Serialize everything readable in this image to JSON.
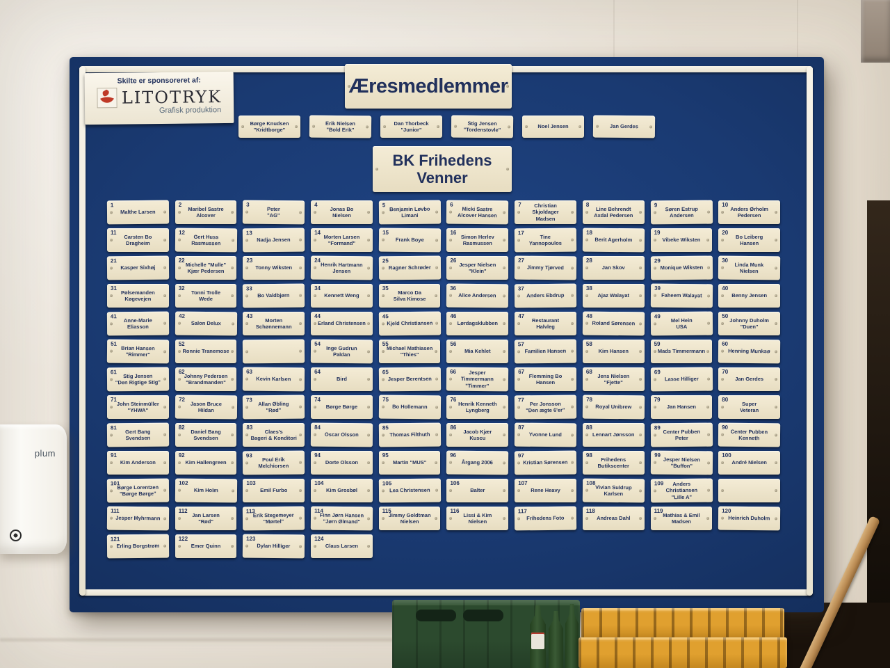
{
  "board": {
    "title": "Æresmedlemmer",
    "club": {
      "line1": "BK Frihedens",
      "line2": "Venner"
    },
    "sponsor": {
      "intro": "Skilte er sponsoreret af:",
      "brand": "LITOTRYK",
      "tagline": "Grafisk produktion"
    },
    "honorary": [
      {
        "name": "Børge Knudsen",
        "nick": "\"Kridtborge\""
      },
      {
        "name": "Erik Nielsen",
        "nick": "\"Bold Erik\""
      },
      {
        "name": "Dan Thorbeck",
        "nick": "\"Junior\""
      },
      {
        "name": "Stig Jensen",
        "nick": "\"Tordenstovle\""
      },
      {
        "name": "Noel Jensen",
        "nick": ""
      },
      {
        "name": "Jan Gerdes",
        "nick": ""
      }
    ],
    "members": [
      [
        "1",
        "Malthe Larsen"
      ],
      [
        "2",
        "Maribel Sastre\nAlcover"
      ],
      [
        "3",
        "Peter\n\"AG\""
      ],
      [
        "4",
        "Jonas Bo\nNielsen"
      ],
      [
        "5",
        "Benjamin Løvbo\nLimani"
      ],
      [
        "6",
        "Micki Sastre\nAlcover Hansen"
      ],
      [
        "7",
        "Christian Skjoldager\nMadsen"
      ],
      [
        "8",
        "Line Behrendt\nAxdal Pedersen"
      ],
      [
        "9",
        "Søren Estrup\nAndersen"
      ],
      [
        "10",
        "Anders Ørholm\nPedersen"
      ],
      [
        "11",
        "Carsten Bo\nDragheim"
      ],
      [
        "12",
        "Gert Huss\nRasmussen"
      ],
      [
        "13",
        "Nadja Jensen"
      ],
      [
        "14",
        "Morten Larsen\n\"Formand\""
      ],
      [
        "15",
        "Frank Boye"
      ],
      [
        "16",
        "Simon Herlev\nRasmussen"
      ],
      [
        "17",
        "Tine\nYannopoulos"
      ],
      [
        "18",
        "Berit Agerholm"
      ],
      [
        "19",
        "Vibeke Wiksten"
      ],
      [
        "20",
        "Bo Leiberg\nHansen"
      ],
      [
        "21",
        "Kasper Sixhøj"
      ],
      [
        "22",
        "Michelle \"Mulle\"\nKjær Pedersen"
      ],
      [
        "23",
        "Tonny Wiksten"
      ],
      [
        "24",
        "Henrik Hartmann\nJensen"
      ],
      [
        "25",
        "Ragner Schrøder"
      ],
      [
        "26",
        "Jesper Nielsen\n\"Klein\""
      ],
      [
        "27",
        "Jimmy Tjørved"
      ],
      [
        "28",
        "Jan Skov"
      ],
      [
        "29",
        "Monique Wiksten"
      ],
      [
        "30",
        "Linda Munk\nNielsen"
      ],
      [
        "31",
        "Pølsemanden\nKøgevejen"
      ],
      [
        "32",
        "Tonni Trolle\nWede"
      ],
      [
        "33",
        "Bo Valdbjørn"
      ],
      [
        "34",
        "Kennett Weng"
      ],
      [
        "35",
        "Marco Da\nSilva Kimose"
      ],
      [
        "36",
        "Alice Andersen"
      ],
      [
        "37",
        "Anders Ebdrup"
      ],
      [
        "38",
        "Ajaz Walayat"
      ],
      [
        "39",
        "Faheem Walayat"
      ],
      [
        "40",
        "Benny Jensen"
      ],
      [
        "41",
        "Anne-Marie\nEliasson"
      ],
      [
        "42",
        "Salon Delux"
      ],
      [
        "43",
        "Morten Schønnemann"
      ],
      [
        "44",
        "Erland Christensen"
      ],
      [
        "45",
        "Kjeld Christiansen"
      ],
      [
        "46",
        "Lørdagsklubben"
      ],
      [
        "47",
        "Restaurant\nHalvleg"
      ],
      [
        "48",
        "Roland Sørensen"
      ],
      [
        "49",
        "Mel Hein\nUSA"
      ],
      [
        "50",
        "Johnny Duholm\n\"Duen\""
      ],
      [
        "51",
        "Brian Hansen\n\"Rimmer\""
      ],
      [
        "52",
        "Ronnie Tranemose"
      ],
      [
        "",
        ""
      ],
      [
        "54",
        "Inge Gudrun\nPaldan"
      ],
      [
        "55",
        "Michael Mathiasen\n\"Thies\""
      ],
      [
        "56",
        "Mia Kehlet"
      ],
      [
        "57",
        "Familien Hansen"
      ],
      [
        "58",
        "Kim Hansen"
      ],
      [
        "59",
        "Mads Timmermann"
      ],
      [
        "60",
        "Henning Munksø"
      ],
      [
        "61",
        "Stig Jensen\n\"Den Rigtige Stig\""
      ],
      [
        "62",
        "Johnny Pedersen\n\"Brandmanden\""
      ],
      [
        "63",
        "Kevin Karlsen"
      ],
      [
        "64",
        "Bird"
      ],
      [
        "65",
        "Jesper Berentsen"
      ],
      [
        "66",
        "Jesper Timmermann\n\"Timmer\""
      ],
      [
        "67",
        "Flemming Bo\nHansen"
      ],
      [
        "68",
        "Jens Nielsen\n\"Fjette\""
      ],
      [
        "69",
        "Lasse Hilliger"
      ],
      [
        "70",
        "Jan Gerdes"
      ],
      [
        "71",
        "John Steinmüller\n\"YHWA\""
      ],
      [
        "72",
        "Jason Bruce\nHildan"
      ],
      [
        "73",
        "Allan Øbling\n\"Rød\""
      ],
      [
        "74",
        "Børge Børge"
      ],
      [
        "75",
        "Bo Hollemann"
      ],
      [
        "76",
        "Henrik Kenneth\nLyngberg"
      ],
      [
        "77",
        "Per Jonsson\n\"Den ægte 6'er\""
      ],
      [
        "78",
        "Royal Unibrew"
      ],
      [
        "79",
        "Jan Hansen"
      ],
      [
        "80",
        "Super\nVeteran"
      ],
      [
        "81",
        "Gert Bang\nSvendsen"
      ],
      [
        "82",
        "Daniel Bang\nSvendsen"
      ],
      [
        "83",
        "Claes's\nBageri & Konditori"
      ],
      [
        "84",
        "Oscar Olsson"
      ],
      [
        "85",
        "Thomas Filthuth"
      ],
      [
        "86",
        "Jacob Kjær\nKuscu"
      ],
      [
        "87",
        "Yvonne Lund"
      ],
      [
        "88",
        "Lennart Jønsson"
      ],
      [
        "89",
        "Center Pubben\nPeter"
      ],
      [
        "90",
        "Center Pubben\nKenneth"
      ],
      [
        "91",
        "Kim Anderson"
      ],
      [
        "92",
        "Kim Hallengreen"
      ],
      [
        "93",
        "Poul Erik\nMelchiorsen"
      ],
      [
        "94",
        "Dorte Olsson"
      ],
      [
        "95",
        "Martin \"MUS\""
      ],
      [
        "96",
        "Årgang 2006"
      ],
      [
        "97",
        "Kristian Sørensen"
      ],
      [
        "98",
        "Frihedens\nButikscenter"
      ],
      [
        "99",
        "Jesper Nielsen\n\"Buffon\""
      ],
      [
        "100",
        "André Nielsen"
      ],
      [
        "101",
        "Børge Lorentzen\n\"Børge Børge\""
      ],
      [
        "102",
        "Kim Holm"
      ],
      [
        "103",
        "Emil Furbo"
      ],
      [
        "104",
        "Kim Grosbøl"
      ],
      [
        "105",
        "Lea Christensen"
      ],
      [
        "106",
        "Balter"
      ],
      [
        "107",
        "Rene Heavy"
      ],
      [
        "108",
        "Vivian Suldrup\nKarlsen"
      ],
      [
        "109",
        "Anders Christiansen\n\"Lille A\""
      ],
      [
        "",
        ""
      ],
      [
        "111",
        "Jesper Myhrmann"
      ],
      [
        "112",
        "Jan Larsen\n\"Rød\""
      ],
      [
        "113",
        "Erik Stegemeyer\n\"Mørtel\""
      ],
      [
        "114",
        "Finn Jørn Hansen\n\"Jørn Ølmand\""
      ],
      [
        "115",
        "Jimmy Goldtman\nNielsen"
      ],
      [
        "116",
        "Lissi & Kim\nNielsen"
      ],
      [
        "117",
        "Frihedens Foto"
      ],
      [
        "118",
        "Andreas Dahl"
      ],
      [
        "119",
        "Mathias & Emil\nMadsen"
      ],
      [
        "120",
        "Heinrich Duholm"
      ],
      [
        "121",
        "Erling Borgstrøm"
      ],
      [
        "122",
        "Emer Quinn"
      ],
      [
        "123",
        "Dylan Hilliger"
      ],
      [
        "124",
        "Claus Larsen"
      ]
    ]
  },
  "wall": {
    "dispenser_brand": "plum"
  },
  "colors": {
    "board_blue": "#1a3a72",
    "frame_white": "#f2ecdd",
    "plate_cream": "#eee6cd",
    "plate_text_navy": "#22315c",
    "logo_red": "#bf3a28",
    "crate_green": "#2c4a2e",
    "crate_yellow": "#e0a02f"
  }
}
